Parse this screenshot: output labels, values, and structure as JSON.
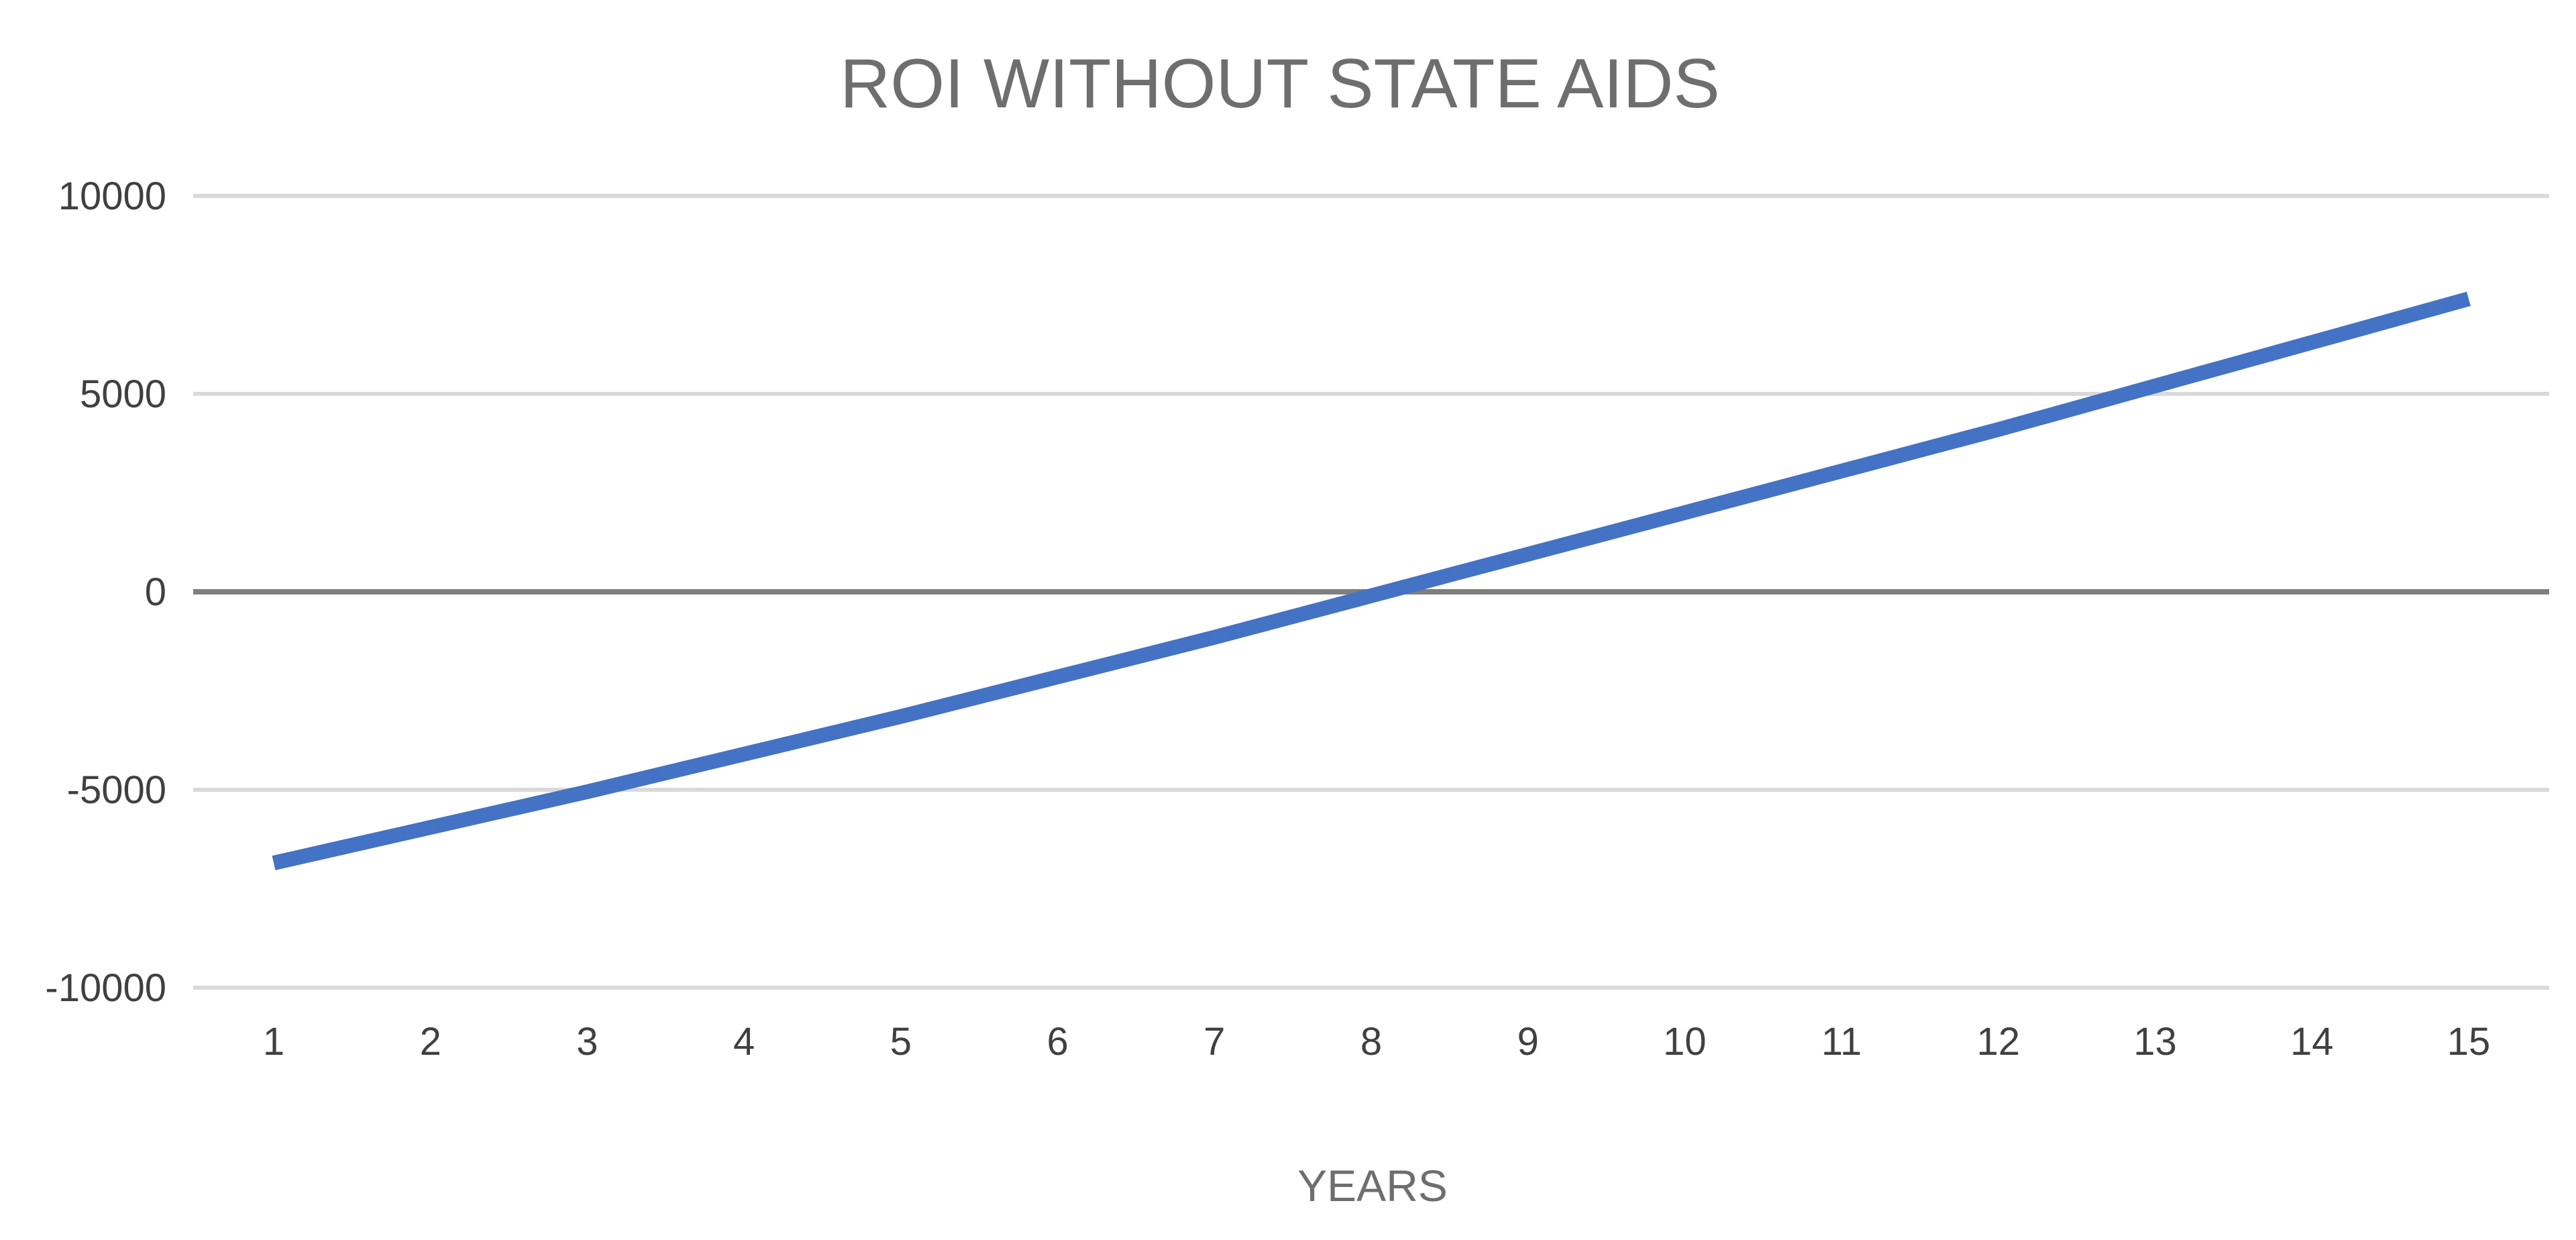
{
  "chart_data": {
    "type": "line",
    "title": "ROI WITHOUT STATE AIDS",
    "xlabel": "YEARS",
    "ylabel": "",
    "x": [
      1,
      2,
      3,
      4,
      5,
      6,
      7,
      8,
      9,
      10,
      11,
      12,
      13,
      14,
      15
    ],
    "series": [
      {
        "values": [
          -6850,
          -5950,
          -5050,
          -4100,
          -3150,
          -2150,
          -1150,
          -100,
          950,
          2000,
          3050,
          4100,
          5200,
          6300,
          7400
        ]
      }
    ],
    "ylim": [
      -10000,
      10000
    ],
    "yticks": [
      10000,
      5000,
      0,
      -5000,
      -10000
    ],
    "xtick_labels": [
      "1",
      "2",
      "3",
      "4",
      "5",
      "6",
      "7",
      "8",
      "9",
      "10",
      "11",
      "12",
      "13",
      "14",
      "15"
    ],
    "ytick_labels": [
      "10000",
      "5000",
      "0",
      "-5000",
      "-10000"
    ],
    "grid": true,
    "legend": "none",
    "colors": {
      "line": "#4472c4",
      "grid": "#d9d9d9",
      "zero_axis": "#7f7f7f",
      "title": "#6e6e6e",
      "tick_text": "#404040"
    }
  }
}
